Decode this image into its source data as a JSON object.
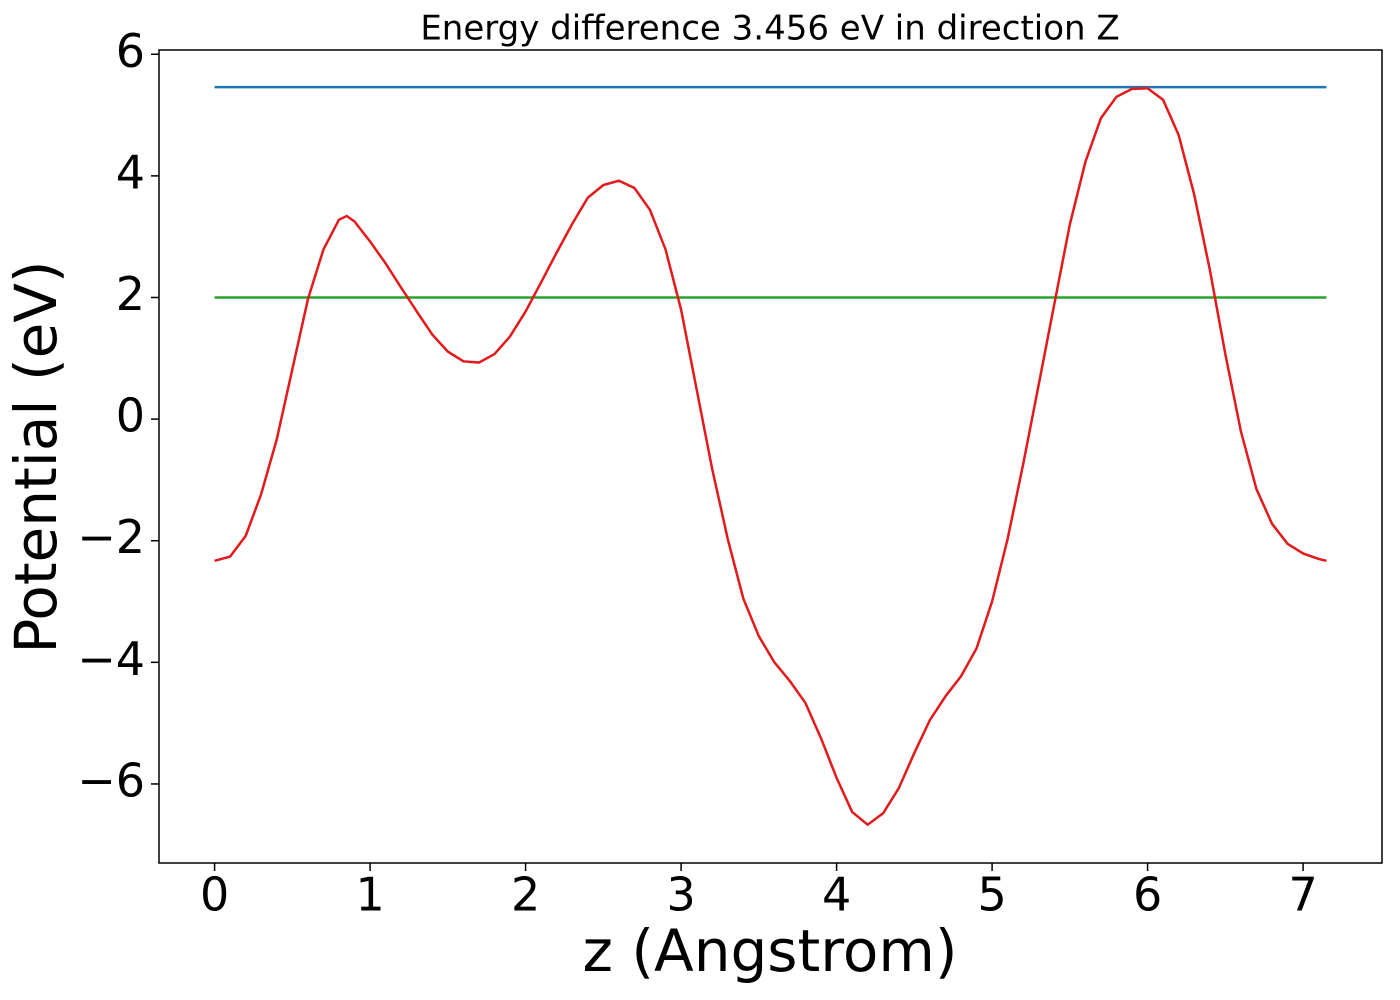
{
  "chart_data": {
    "type": "line",
    "title": "Energy difference 3.456 eV in direction Z",
    "xlabel": "z (Angstrom)",
    "ylabel": "Potential (eV)",
    "xlim": [
      -0.3575,
      7.5075
    ],
    "ylim": [
      -7.3,
      6.07
    ],
    "xticks": [
      0,
      1,
      2,
      3,
      4,
      5,
      6,
      7
    ],
    "yticks": [
      {
        "value": -6,
        "label": "−6"
      },
      {
        "value": -4,
        "label": "−4"
      },
      {
        "value": -2,
        "label": "−2"
      },
      0,
      2,
      4,
      6
    ],
    "grid": false,
    "series": [
      {
        "color": "#1f77b4",
        "x": [
          0,
          7.15
        ],
        "values": [
          5.46,
          5.46
        ]
      },
      {
        "color": "#2ca02c",
        "x": [
          0,
          7.15
        ],
        "values": [
          2.0,
          2.0
        ]
      },
      {
        "color": "#e31a1c",
        "x": [
          0,
          0.1,
          0.2,
          0.3,
          0.4,
          0.5,
          0.6,
          0.7,
          0.8,
          0.85,
          0.9,
          1.0,
          1.1,
          1.2,
          1.3,
          1.4,
          1.5,
          1.6,
          1.7,
          1.8,
          1.9,
          2.0,
          2.1,
          2.2,
          2.3,
          2.4,
          2.5,
          2.6,
          2.7,
          2.8,
          2.9,
          3.0,
          3.1,
          3.2,
          3.3,
          3.4,
          3.5,
          3.6,
          3.7,
          3.8,
          3.9,
          4.0,
          4.1,
          4.2,
          4.3,
          4.4,
          4.5,
          4.6,
          4.7,
          4.8,
          4.9,
          5.0,
          5.1,
          5.2,
          5.3,
          5.4,
          5.5,
          5.6,
          5.7,
          5.8,
          5.9,
          6.0,
          6.1,
          6.2,
          6.3,
          6.4,
          6.5,
          6.6,
          6.7,
          6.8,
          6.9,
          7.0,
          7.1,
          7.15
        ],
        "values": [
          -2.33,
          -2.26,
          -1.92,
          -1.23,
          -0.33,
          0.82,
          1.97,
          2.79,
          3.28,
          3.34,
          3.25,
          2.92,
          2.56,
          2.16,
          1.77,
          1.39,
          1.11,
          0.95,
          0.93,
          1.07,
          1.36,
          1.77,
          2.25,
          2.74,
          3.21,
          3.64,
          3.85,
          3.92,
          3.8,
          3.44,
          2.79,
          1.8,
          0.49,
          -0.82,
          -1.97,
          -2.95,
          -3.57,
          -4.0,
          -4.31,
          -4.67,
          -5.25,
          -5.9,
          -6.46,
          -6.67,
          -6.48,
          -6.07,
          -5.49,
          -4.95,
          -4.56,
          -4.23,
          -3.77,
          -3.0,
          -1.97,
          -0.74,
          0.57,
          1.89,
          3.2,
          4.23,
          4.95,
          5.3,
          5.43,
          5.44,
          5.25,
          4.67,
          3.69,
          2.46,
          1.07,
          -0.2,
          -1.15,
          -1.72,
          -2.05,
          -2.21,
          -2.3,
          -2.33
        ]
      }
    ]
  }
}
